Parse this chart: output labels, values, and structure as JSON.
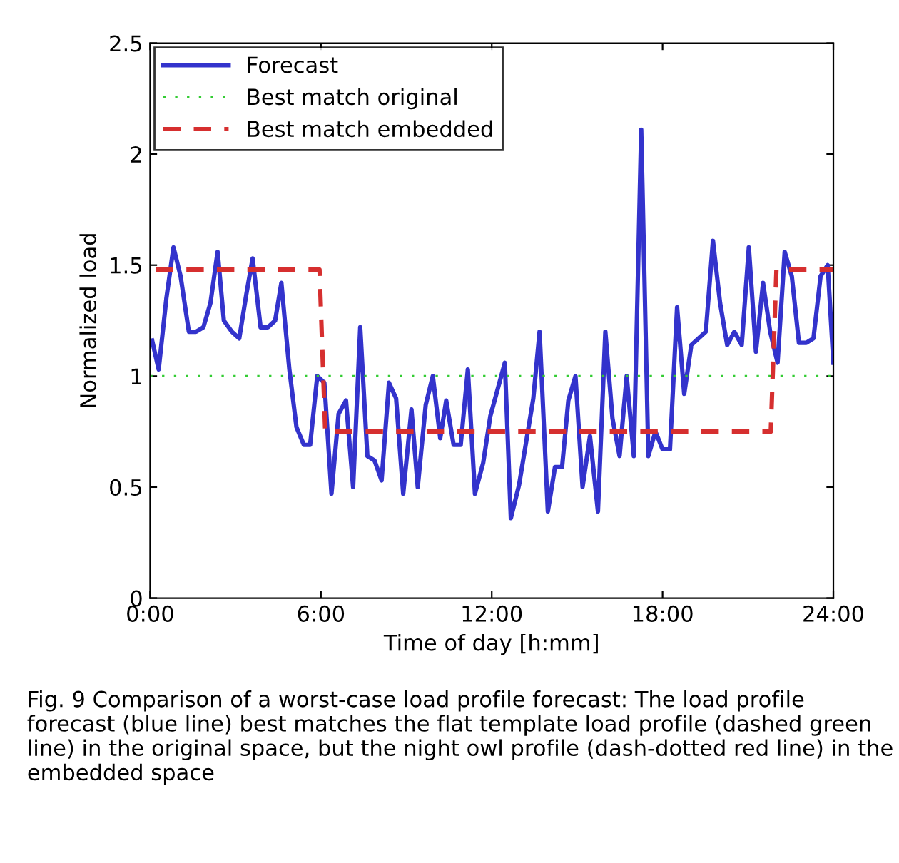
{
  "chart_data": {
    "type": "line",
    "xlabel": "Time of day [h:mm]",
    "ylabel": "Normalized load",
    "xlim": [
      0,
      24
    ],
    "ylim": [
      0,
      2.5
    ],
    "xticks": [
      {
        "value": 0,
        "label": "0:00"
      },
      {
        "value": 6,
        "label": "6:00"
      },
      {
        "value": 12,
        "label": "12:00"
      },
      {
        "value": 18,
        "label": "18:00"
      },
      {
        "value": 24,
        "label": "24:00"
      }
    ],
    "yticks": [
      0,
      0.5,
      1,
      1.5,
      2,
      2.5
    ],
    "grid": false,
    "legend": "top left",
    "marker": "none",
    "series": [
      {
        "name": "Forecast",
        "color": "#3333cc",
        "line_style": "solid",
        "x": [
          0.07,
          0.3,
          0.57,
          0.82,
          1.07,
          1.36,
          1.61,
          1.87,
          2.12,
          2.37,
          2.59,
          2.87,
          3.13,
          3.38,
          3.6,
          3.88,
          4.14,
          4.39,
          4.61,
          4.89,
          5.14,
          5.4,
          5.62,
          5.87,
          6.12,
          6.37,
          6.62,
          6.88,
          7.13,
          7.38,
          7.63,
          7.88,
          8.13,
          8.39,
          8.64,
          8.89,
          9.18,
          9.4,
          9.68,
          9.93,
          10.19,
          10.4,
          10.66,
          10.91,
          11.16,
          11.41,
          11.7,
          11.95,
          12.46,
          12.67,
          12.96,
          13.46,
          13.68,
          13.97,
          14.22,
          14.47,
          14.69,
          14.94,
          15.19,
          15.45,
          15.73,
          15.99,
          16.24,
          16.49,
          16.74,
          16.99,
          17.25,
          17.5,
          17.75,
          18.0,
          18.26,
          18.51,
          18.76,
          19.01,
          19.52,
          19.77,
          20.02,
          20.27,
          20.52,
          20.78,
          21.03,
          21.28,
          21.53,
          21.78,
          22.04,
          22.29,
          22.54,
          22.79,
          23.05,
          23.3,
          23.55,
          23.8,
          24.0
        ],
        "values": [
          1.16,
          1.03,
          1.35,
          1.58,
          1.45,
          1.2,
          1.2,
          1.22,
          1.33,
          1.56,
          1.25,
          1.2,
          1.17,
          1.37,
          1.53,
          1.22,
          1.22,
          1.25,
          1.42,
          1.03,
          0.77,
          0.69,
          0.69,
          1.0,
          0.97,
          0.47,
          0.83,
          0.89,
          0.5,
          1.22,
          0.64,
          0.62,
          0.53,
          0.97,
          0.9,
          0.47,
          0.85,
          0.5,
          0.87,
          1.0,
          0.72,
          0.89,
          0.69,
          0.69,
          1.03,
          0.47,
          0.61,
          0.82,
          1.06,
          0.36,
          0.51,
          0.9,
          1.2,
          0.39,
          0.59,
          0.59,
          0.89,
          1.0,
          0.5,
          0.73,
          0.39,
          1.2,
          0.81,
          0.64,
          1.0,
          0.64,
          2.11,
          0.64,
          0.75,
          0.67,
          0.67,
          1.31,
          0.92,
          1.14,
          1.2,
          1.61,
          1.33,
          1.14,
          1.2,
          1.14,
          1.58,
          1.11,
          1.42,
          1.2,
          1.06,
          1.56,
          1.45,
          1.15,
          1.15,
          1.17,
          1.45,
          1.5,
          1.06
        ]
      },
      {
        "name": "Best match original",
        "color": "#33cc33",
        "line_style": "dotted",
        "x": [
          0,
          24
        ],
        "values": [
          1,
          1
        ]
      },
      {
        "name": "Best match embedded",
        "color": "#d62f2f",
        "line_style": "dashed",
        "x": [
          0.2,
          5.95,
          6.15,
          21.8,
          22.0,
          24.0
        ],
        "values": [
          1.48,
          1.48,
          0.75,
          0.75,
          1.48,
          1.48
        ]
      }
    ],
    "annotations": [
      "Fig. 9 Comparison of a worst-case load profile forecast: The load profile forecast (blue line) best matches the flat template load profile (dashed green line) in the original space, but the night owl profile (dash-dotted red line) in the embedded space"
    ]
  }
}
